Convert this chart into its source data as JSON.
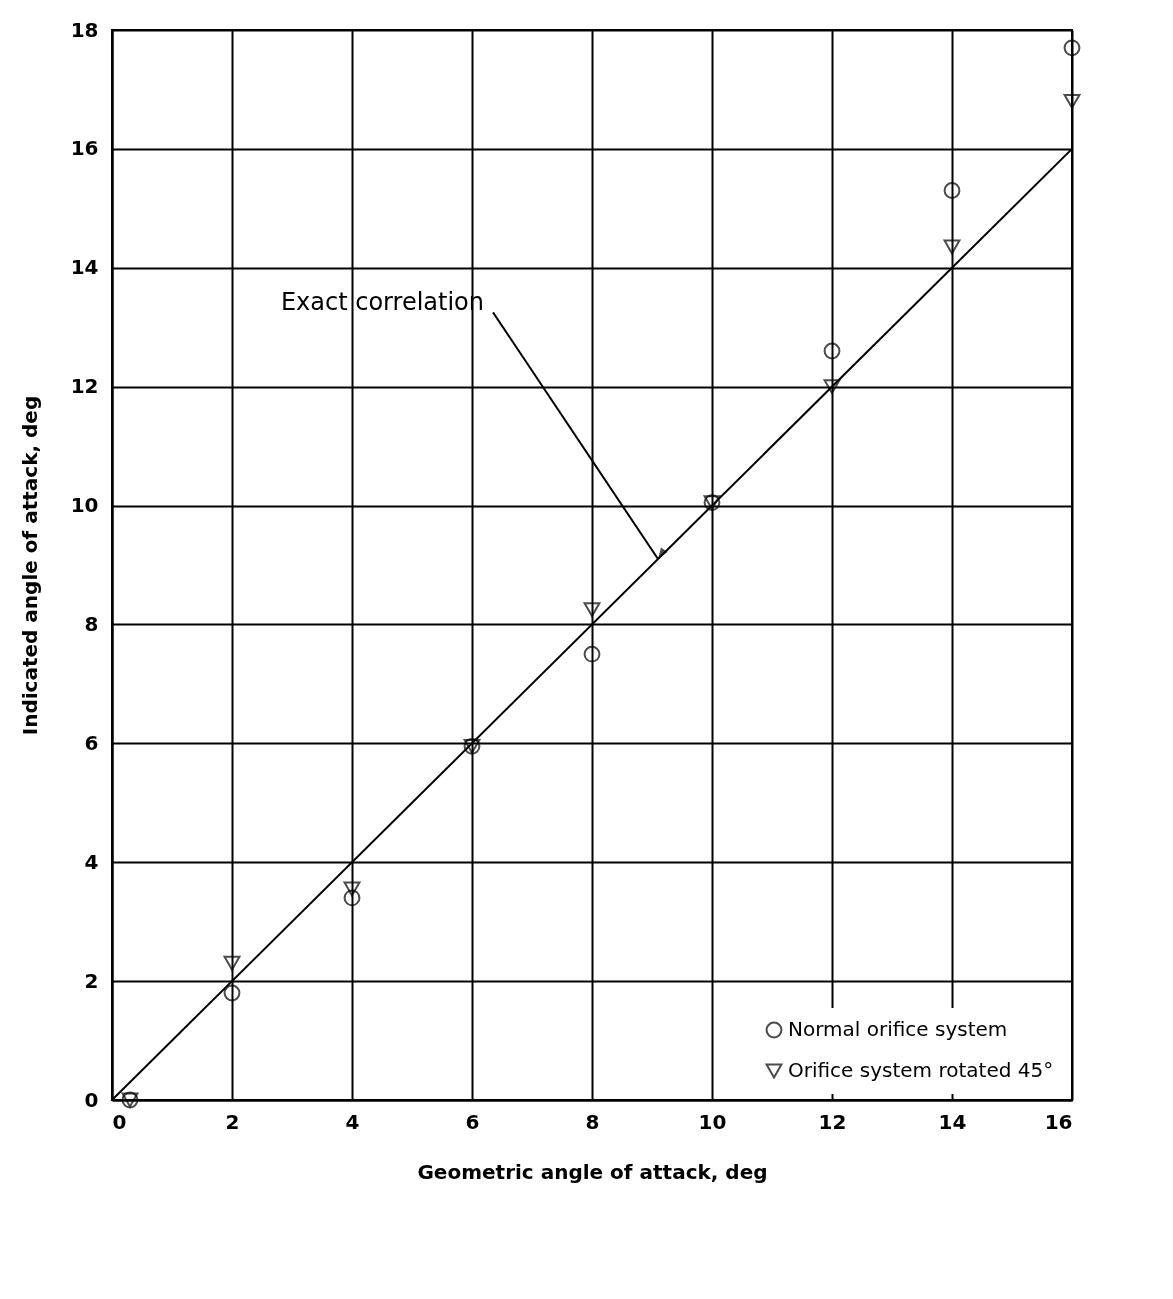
{
  "chart_data": {
    "type": "scatter",
    "xlabel": "Geometric  angle  of  attack, deg",
    "ylabel": "Indicated angle of attack, deg",
    "x": [
      0.3,
      2,
      4,
      6,
      8,
      10,
      12,
      14,
      16
    ],
    "series": [
      {
        "type": "line",
        "color": "#000000",
        "x": [
          0,
          16
        ],
        "values": [
          0,
          16
        ]
      },
      {
        "name": "Normal orifice system",
        "color": "#000000",
        "marker": "circle",
        "values": [
          0,
          1.8,
          3.4,
          5.95,
          7.5,
          10.05,
          12.6,
          15.3,
          17.7
        ]
      },
      {
        "name": "Orifice system rotated 45°",
        "color": "#000000",
        "marker": "triangle",
        "values": [
          0,
          2.3,
          3.55,
          5.95,
          8.25,
          10.05,
          12.0,
          14.35,
          16.8
        ]
      }
    ],
    "annotations": [
      {
        "text": "Exact correlation",
        "x": 9.1,
        "y": 9.1
      }
    ],
    "xlim": [
      0,
      16
    ],
    "ylim": [
      0,
      18
    ],
    "xticks": [
      0,
      2,
      4,
      6,
      8,
      10,
      12,
      14,
      16
    ],
    "yticks": [
      0,
      2,
      4,
      6,
      8,
      10,
      12,
      14,
      16,
      18
    ],
    "grid": true,
    "legend": "bottom right"
  }
}
